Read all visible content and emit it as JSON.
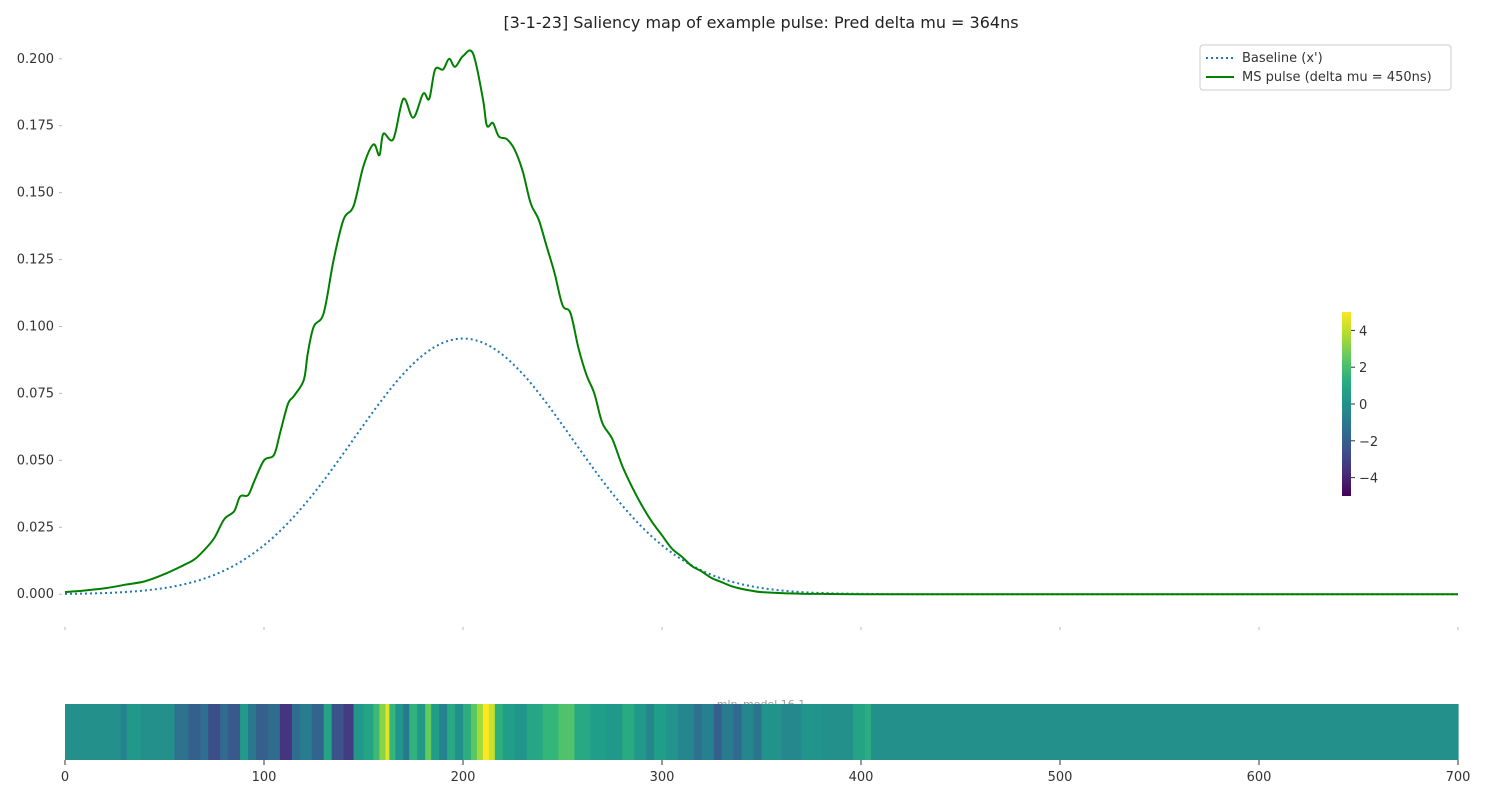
{
  "chart_data": {
    "type": "line",
    "title": "[3-1-23] Saliency map of example pulse: Pred delta mu = 364ns",
    "xlim": [
      0,
      700
    ],
    "ylim": [
      -0.0115,
      0.21
    ],
    "grid": false,
    "legend_placement": "top-right",
    "x_ticks": [
      "0",
      "100",
      "200",
      "300",
      "400",
      "500",
      "600",
      "700"
    ],
    "y_ticks": [
      "0.000",
      "0.025",
      "0.050",
      "0.075",
      "0.100",
      "0.125",
      "0.150",
      "0.175",
      "0.200"
    ],
    "y_tick_values": [
      0,
      0.025,
      0.05,
      0.075,
      0.1,
      0.125,
      0.15,
      0.175,
      0.2
    ],
    "x_tick_values": [
      0,
      100,
      200,
      300,
      400,
      500,
      600,
      700
    ],
    "series": [
      {
        "name": "Baseline (x')",
        "style": "dotted",
        "color": "#1f77b4",
        "gaussian": {
          "amplitude": 0.0955,
          "mean": 200,
          "sigma": 55
        }
      },
      {
        "name": "MS pulse (delta mu = 450ns)",
        "style": "solid",
        "color": "#008000",
        "x": [
          0,
          10,
          20,
          30,
          40,
          50,
          60,
          65,
          70,
          75,
          80,
          85,
          88,
          92,
          95,
          100,
          105,
          108,
          112,
          115,
          120,
          122,
          125,
          130,
          135,
          140,
          145,
          150,
          155,
          158,
          160,
          165,
          170,
          175,
          180,
          183,
          186,
          190,
          193,
          196,
          200,
          205,
          210,
          212,
          215,
          218,
          222,
          226,
          230,
          234,
          238,
          242,
          246,
          250,
          254,
          258,
          262,
          266,
          270,
          275,
          280,
          285,
          290,
          295,
          300,
          305,
          310,
          315,
          320,
          325,
          330,
          335,
          340,
          345,
          350,
          360,
          370,
          380,
          390,
          400,
          410,
          420,
          450,
          500,
          550,
          600,
          650,
          700
        ],
        "y": [
          0.0008,
          0.0014,
          0.0022,
          0.0035,
          0.0048,
          0.0075,
          0.011,
          0.013,
          0.0165,
          0.021,
          0.028,
          0.031,
          0.0365,
          0.037,
          0.042,
          0.05,
          0.052,
          0.06,
          0.071,
          0.074,
          0.08,
          0.09,
          0.1,
          0.105,
          0.125,
          0.14,
          0.145,
          0.16,
          0.168,
          0.164,
          0.172,
          0.17,
          0.185,
          0.178,
          0.187,
          0.185,
          0.196,
          0.196,
          0.2,
          0.197,
          0.201,
          0.202,
          0.185,
          0.175,
          0.176,
          0.171,
          0.17,
          0.166,
          0.158,
          0.146,
          0.14,
          0.13,
          0.12,
          0.108,
          0.105,
          0.092,
          0.082,
          0.075,
          0.064,
          0.058,
          0.048,
          0.04,
          0.033,
          0.027,
          0.022,
          0.017,
          0.014,
          0.0105,
          0.0085,
          0.006,
          0.0045,
          0.003,
          0.002,
          0.0013,
          0.0008,
          0.0004,
          0.0002,
          0.0001,
          5e-05,
          2e-05,
          0,
          0,
          0,
          0,
          0,
          0,
          0,
          0
        ]
      }
    ],
    "heatmap": {
      "label": "mlp_model 16.1",
      "colormap": "viridis",
      "vmin": -5,
      "vmax": 5,
      "colorbar_ticks": [
        "4",
        "2",
        "0",
        "−2",
        "−4"
      ],
      "colorbar_tick_values": [
        4,
        2,
        0,
        -2,
        -4
      ],
      "x_ticks": [
        "0",
        "100",
        "200",
        "300",
        "400",
        "500",
        "600",
        "700"
      ],
      "segments": [
        [
          0,
          28,
          0.0
        ],
        [
          28,
          31,
          -0.6
        ],
        [
          31,
          38,
          0.3
        ],
        [
          38,
          55,
          0.0
        ],
        [
          55,
          62,
          -1.2
        ],
        [
          62,
          68,
          -2.0
        ],
        [
          68,
          72,
          -1.4
        ],
        [
          72,
          78,
          -2.6
        ],
        [
          78,
          82,
          -1.6
        ],
        [
          82,
          88,
          -2.2
        ],
        [
          88,
          92,
          0.4
        ],
        [
          92,
          96,
          -1.0
        ],
        [
          96,
          102,
          -2.0
        ],
        [
          102,
          108,
          -1.5
        ],
        [
          108,
          114,
          -3.5
        ],
        [
          114,
          118,
          -1.5
        ],
        [
          118,
          124,
          -0.8
        ],
        [
          124,
          130,
          -1.8
        ],
        [
          130,
          134,
          0.8
        ],
        [
          134,
          140,
          -2.4
        ],
        [
          140,
          145,
          -3.2
        ],
        [
          145,
          150,
          0.3
        ],
        [
          150,
          155,
          0.8
        ],
        [
          155,
          158,
          1.8
        ],
        [
          158,
          161,
          3.2
        ],
        [
          161,
          163,
          4.6
        ],
        [
          163,
          166,
          1.6
        ],
        [
          166,
          170,
          0.2
        ],
        [
          170,
          173,
          -1.0
        ],
        [
          173,
          177,
          1.4
        ],
        [
          177,
          181,
          0.3
        ],
        [
          181,
          184,
          2.6
        ],
        [
          184,
          188,
          0.5
        ],
        [
          188,
          192,
          -0.5
        ],
        [
          192,
          196,
          1.0
        ],
        [
          196,
          200,
          0.0
        ],
        [
          200,
          204,
          1.2
        ],
        [
          204,
          207,
          2.4
        ],
        [
          207,
          210,
          3.6
        ],
        [
          210,
          213,
          5.0
        ],
        [
          213,
          216,
          4.2
        ],
        [
          216,
          220,
          1.3
        ],
        [
          220,
          226,
          0.6
        ],
        [
          226,
          232,
          0.2
        ],
        [
          232,
          240,
          0.9
        ],
        [
          240,
          248,
          1.6
        ],
        [
          248,
          256,
          2.2
        ],
        [
          256,
          264,
          1.0
        ],
        [
          264,
          272,
          0.6
        ],
        [
          272,
          280,
          0.3
        ],
        [
          280,
          286,
          1.1
        ],
        [
          286,
          292,
          0.3
        ],
        [
          292,
          296,
          -0.4
        ],
        [
          296,
          302,
          0.6
        ],
        [
          302,
          308,
          0.2
        ],
        [
          308,
          316,
          -0.4
        ],
        [
          316,
          320,
          -1.3
        ],
        [
          320,
          326,
          -0.6
        ],
        [
          326,
          330,
          -2.0
        ],
        [
          330,
          336,
          -0.8
        ],
        [
          336,
          340,
          -1.6
        ],
        [
          340,
          346,
          -0.4
        ],
        [
          346,
          350,
          -1.1
        ],
        [
          350,
          360,
          0.1
        ],
        [
          360,
          370,
          -0.3
        ],
        [
          370,
          380,
          0.2
        ],
        [
          380,
          396,
          0.0
        ],
        [
          396,
          402,
          0.8
        ],
        [
          402,
          405,
          1.2
        ],
        [
          405,
          700,
          0.0
        ]
      ]
    }
  }
}
